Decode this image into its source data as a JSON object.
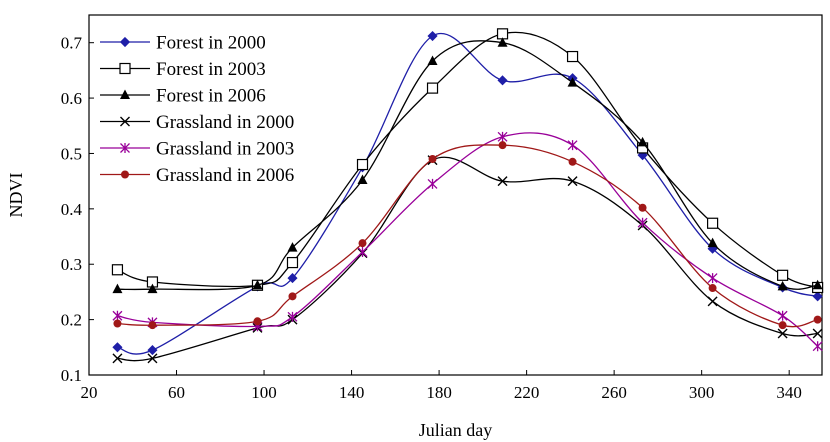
{
  "chart_data": {
    "type": "line",
    "xlabel": "Julian day",
    "ylabel": "NDVI",
    "xlim": [
      20,
      355
    ],
    "ylim": [
      0.1,
      0.75
    ],
    "xticks": [
      "20",
      "60",
      "100",
      "140",
      "180",
      "220",
      "260",
      "300",
      "340"
    ],
    "yticks": [
      "0.1",
      "0.2",
      "0.3",
      "0.4",
      "0.5",
      "0.6",
      "0.7"
    ],
    "grid": false,
    "legend_position": "top-left",
    "x": [
      33,
      49,
      97,
      113,
      145,
      177,
      209,
      241,
      273,
      305,
      337,
      353
    ],
    "series": [
      {
        "name": "Forest in 2000",
        "color": "#1f1fa8",
        "marker": "diamond",
        "values": [
          0.15,
          0.145,
          0.26,
          0.275,
          0.475,
          0.712,
          0.632,
          0.636,
          0.497,
          0.328,
          0.258,
          0.242
        ]
      },
      {
        "name": "Forest in 2003",
        "color": "#000000",
        "marker": "square-open",
        "values": [
          0.29,
          0.268,
          0.262,
          0.303,
          0.48,
          0.618,
          0.716,
          0.675,
          0.51,
          0.374,
          0.28,
          0.258
        ]
      },
      {
        "name": "Forest in 2006",
        "color": "#000000",
        "marker": "triangle",
        "values": [
          0.255,
          0.255,
          0.262,
          0.33,
          0.452,
          0.667,
          0.7,
          0.628,
          0.52,
          0.338,
          0.26,
          0.262
        ]
      },
      {
        "name": "Grassland in 2000",
        "color": "#000000",
        "marker": "x",
        "values": [
          0.13,
          0.13,
          0.185,
          0.2,
          0.32,
          0.488,
          0.45,
          0.45,
          0.37,
          0.233,
          0.175,
          0.175
        ]
      },
      {
        "name": "Grassland in 2003",
        "color": "#990099",
        "marker": "asterisk",
        "values": [
          0.207,
          0.195,
          0.188,
          0.205,
          0.322,
          0.445,
          0.53,
          0.515,
          0.375,
          0.275,
          0.207,
          0.152
        ]
      },
      {
        "name": "Grassland in 2006",
        "color": "#a01818",
        "marker": "circle",
        "values": [
          0.193,
          0.19,
          0.197,
          0.242,
          0.338,
          0.49,
          0.515,
          0.485,
          0.402,
          0.257,
          0.19,
          0.2
        ]
      }
    ]
  }
}
